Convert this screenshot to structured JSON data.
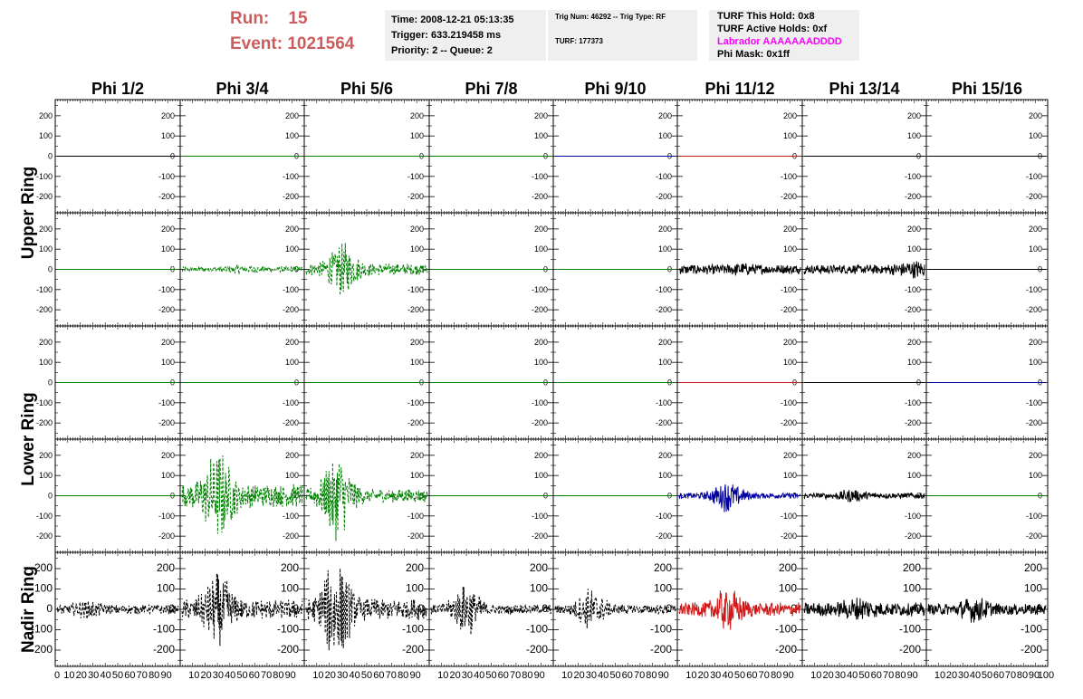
{
  "header": {
    "run_label": "Run:",
    "run_value": "15",
    "event_label": "Event:",
    "event_value": "1021564",
    "time_line": "Time: 2008-12-21 05:13:35",
    "trigger_line": "Trigger: 633.219458 ms",
    "priority_line": "Priority: 2 -- Queue: 2",
    "trig_num_line": "Trig Num: 46292 -- Trig Type: RF",
    "turf_line": "TURF: 177373",
    "turf_hold_line": "TURF This Hold: 0x8",
    "turf_active_line": "TURF Active Holds: 0xf",
    "labrador_line": "Labrador AAAAAAADDDD",
    "phi_mask_line": "Phi Mask: 0x1ff"
  },
  "colors": {
    "header_red": "#cd5c5c",
    "labrador_magenta": "#ff00ff",
    "info_box_bg": "#efefef",
    "trace_black": "#000000",
    "trace_green": "#008000",
    "trace_blue": "#0000a0",
    "trace_red": "#d01818"
  },
  "chart_data": {
    "type": "line",
    "columns": [
      "Phi 1/2",
      "Phi 3/4",
      "Phi 5/6",
      "Phi 7/8",
      "Phi 9/10",
      "Phi 11/12",
      "Phi 13/14",
      "Phi 15/16"
    ],
    "ring_labels": [
      {
        "text": "Upper Ring",
        "rows": [
          0,
          1
        ]
      },
      {
        "text": "Lower Ring",
        "rows": [
          2,
          3
        ]
      },
      {
        "text": "Nadir Ring",
        "rows": [
          4
        ]
      }
    ],
    "ylim": [
      -280,
      280
    ],
    "yticks": [
      200,
      100,
      0,
      -100,
      -200
    ],
    "xlim": [
      0,
      100
    ],
    "xtick_labels": [
      "0",
      "10",
      "20",
      "30",
      "40",
      "50",
      "60",
      "70",
      "80",
      "90",
      "100"
    ],
    "grid": false,
    "rows": [
      [
        {
          "color": "#000000",
          "style": "solid",
          "amp": 0
        },
        {
          "color": "#008000",
          "style": "solid",
          "amp": 0
        },
        {
          "color": "#008000",
          "style": "solid",
          "amp": 0
        },
        {
          "color": "#008000",
          "style": "solid",
          "amp": 0
        },
        {
          "color": "#0000a0",
          "style": "solid",
          "amp": 0
        },
        {
          "color": "#d01818",
          "style": "solid",
          "amp": 0
        },
        {
          "color": "#000000",
          "style": "solid",
          "amp": 0
        },
        {
          "color": "#000000",
          "style": "solid",
          "amp": 0
        }
      ],
      [
        {
          "color": "#008000",
          "style": "solid",
          "amp": 0
        },
        {
          "color": "#008000",
          "style": "dashed",
          "amp": 15,
          "peak": 50,
          "peak_amp": 10
        },
        {
          "color": "#008000",
          "style": "dashed",
          "amp": 30,
          "peak": 30,
          "peak_amp": 110
        },
        {
          "color": "#008000",
          "style": "solid",
          "amp": 0
        },
        {
          "color": "#008000",
          "style": "solid",
          "amp": 0
        },
        {
          "color": "#000000",
          "style": "solid",
          "amp": 25,
          "peak": 50,
          "peak_amp": 10
        },
        {
          "color": "#000000",
          "style": "solid",
          "amp": 25,
          "peak": 90,
          "peak_amp": 25
        },
        {
          "color": "#000000",
          "style": "solid",
          "amp": 0
        }
      ],
      [
        {
          "color": "#008000",
          "style": "solid",
          "amp": 0
        },
        {
          "color": "#008000",
          "style": "solid",
          "amp": 0
        },
        {
          "color": "#008000",
          "style": "solid",
          "amp": 0
        },
        {
          "color": "#008000",
          "style": "solid",
          "amp": 0
        },
        {
          "color": "#008000",
          "style": "solid",
          "amp": 0
        },
        {
          "color": "#d01818",
          "style": "solid",
          "amp": 0
        },
        {
          "color": "#000000",
          "style": "solid",
          "amp": 0
        },
        {
          "color": "#0000a0",
          "style": "solid",
          "amp": 0
        }
      ],
      [
        {
          "color": "#008000",
          "style": "solid",
          "amp": 0
        },
        {
          "color": "#008000",
          "style": "dashed",
          "amp": 60,
          "peak": 30,
          "peak_amp": 180
        },
        {
          "color": "#008000",
          "style": "dashed",
          "amp": 35,
          "peak": 25,
          "peak_amp": 200
        },
        {
          "color": "#008000",
          "style": "solid",
          "amp": 0
        },
        {
          "color": "#008000",
          "style": "solid",
          "amp": 0
        },
        {
          "color": "#0000a0",
          "style": "solid",
          "amp": 15,
          "peak": 40,
          "peak_amp": 70
        },
        {
          "color": "#000000",
          "style": "solid",
          "amp": 15,
          "peak": 40,
          "peak_amp": 20
        },
        {
          "color": "#008000",
          "style": "solid",
          "amp": 0
        }
      ],
      [
        {
          "color": "#000000",
          "style": "dashed",
          "amp": 25,
          "peak": 25,
          "peak_amp": 25
        },
        {
          "color": "#000000",
          "style": "dashed",
          "amp": 50,
          "peak": 30,
          "peak_amp": 140
        },
        {
          "color": "#000000",
          "style": "dashed",
          "amp": 55,
          "peak": 25,
          "peak_amp": 220
        },
        {
          "color": "#000000",
          "style": "dashed",
          "amp": 25,
          "peak": 30,
          "peak_amp": 110
        },
        {
          "color": "#000000",
          "style": "dashed",
          "amp": 25,
          "peak": 30,
          "peak_amp": 90
        },
        {
          "color": "#d01818",
          "style": "solid",
          "amp": 35,
          "peak": 40,
          "peak_amp": 80
        },
        {
          "color": "#000000",
          "style": "solid",
          "amp": 35,
          "peak": 45,
          "peak_amp": 35
        },
        {
          "color": "#000000",
          "style": "solid",
          "amp": 30,
          "peak": 40,
          "peak_amp": 40
        }
      ]
    ]
  }
}
